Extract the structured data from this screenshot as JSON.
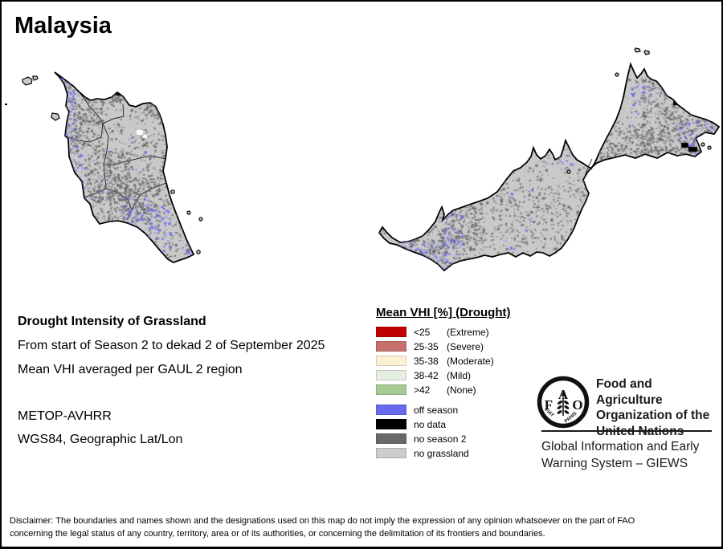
{
  "title": "Malaysia",
  "map": {
    "colors": {
      "land": "#c9c9c9",
      "outline": "#000000",
      "speckle_dark": "#6e6e6e",
      "speckle_blue": "#6b6bee",
      "no_data_black": "#000000",
      "white_patch": "#ffffff"
    }
  },
  "info": {
    "heading": "Drought Intensity of Grassland",
    "line1": "From start of Season 2 to dekad 2 of September 2025",
    "line2": "Mean VHI averaged per GAUL 2 region",
    "sensor": "METOP-AVHRR",
    "projection": "WGS84, Geographic Lat/Lon"
  },
  "legend": {
    "title": "Mean VHI [%] (Drought)",
    "drought_items": [
      {
        "range": "<25",
        "label": "(Extreme)",
        "color": "#c00000"
      },
      {
        "range": "25-35",
        "label": "(Severe)",
        "color": "#c7706e"
      },
      {
        "range": "35-38",
        "label": "(Moderate)",
        "color": "#fdf1d3"
      },
      {
        "range": "38-42",
        "label": "(Mild)",
        "color": "#e4eee1"
      },
      {
        "range": ">42",
        "label": "(None)",
        "color": "#a5cb92"
      }
    ],
    "season_items": [
      {
        "label": "off season",
        "color": "#6a6af0"
      },
      {
        "label": "no data",
        "color": "#000000"
      },
      {
        "label": "no season 2",
        "color": "#696969"
      },
      {
        "label": "no grassland",
        "color": "#cccccc"
      }
    ]
  },
  "footer": {
    "fao_name": "Food and Agriculture\nOrganization of the\nUnited Nations",
    "giews": "Global Information and Early\nWarning System – GIEWS",
    "logo": {
      "f": "F",
      "a": "A",
      "o": "O",
      "fiat": "FIAT",
      "panis": "PANIS"
    }
  },
  "disclaimer": {
    "line1": "Disclaimer: The boundaries and names shown and the designations used on this map do not imply the expression of any opinion whatsoever on the part of FAO",
    "line2": "concerning the legal status of any country, territory, area or of its authorities, or concerning the delimitation of its frontiers and boundaries."
  }
}
